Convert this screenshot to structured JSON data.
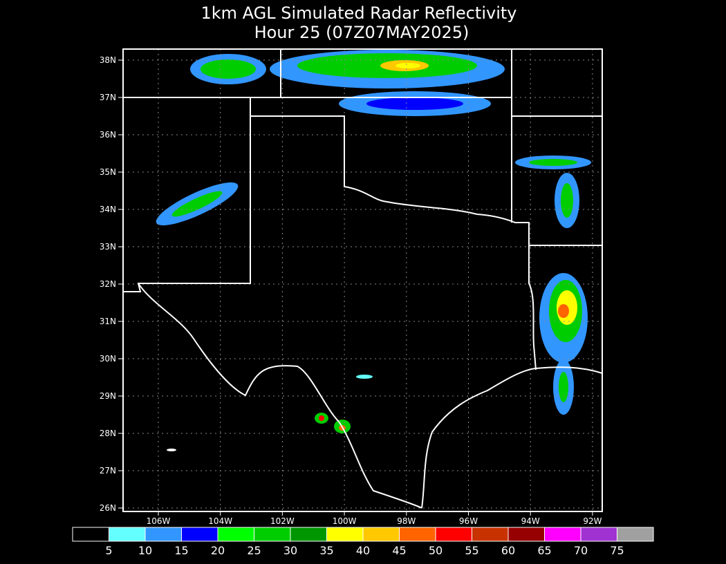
{
  "title": [
    "1km AGL Simulated Radar Reflectivity",
    "Hour 25 (07Z07MAY2025)"
  ],
  "lat_labels": [
    "38N",
    "37N",
    "36N",
    "35N",
    "34N",
    "33N",
    "32N",
    "31N",
    "30N",
    "29N",
    "28N",
    "27N",
    "26N"
  ],
  "lon_labels": [
    "106W",
    "104W",
    "102W",
    "100W",
    "98W",
    "96W",
    "94W",
    "92W"
  ],
  "colorbar": {
    "colors": [
      "#000000",
      "#64ffff",
      "#3296ff",
      "#0000ff",
      "#00ff00",
      "#00cd00",
      "#009600",
      "#ffff00",
      "#ffc800",
      "#ff6400",
      "#ff0000",
      "#c83200",
      "#960000",
      "#ff00ff",
      "#a032d2",
      "#a0a0a0"
    ],
    "labels": [
      "5",
      "10",
      "15",
      "20",
      "25",
      "30",
      "35",
      "40",
      "45",
      "50",
      "55",
      "60",
      "65",
      "70",
      "75"
    ]
  }
}
